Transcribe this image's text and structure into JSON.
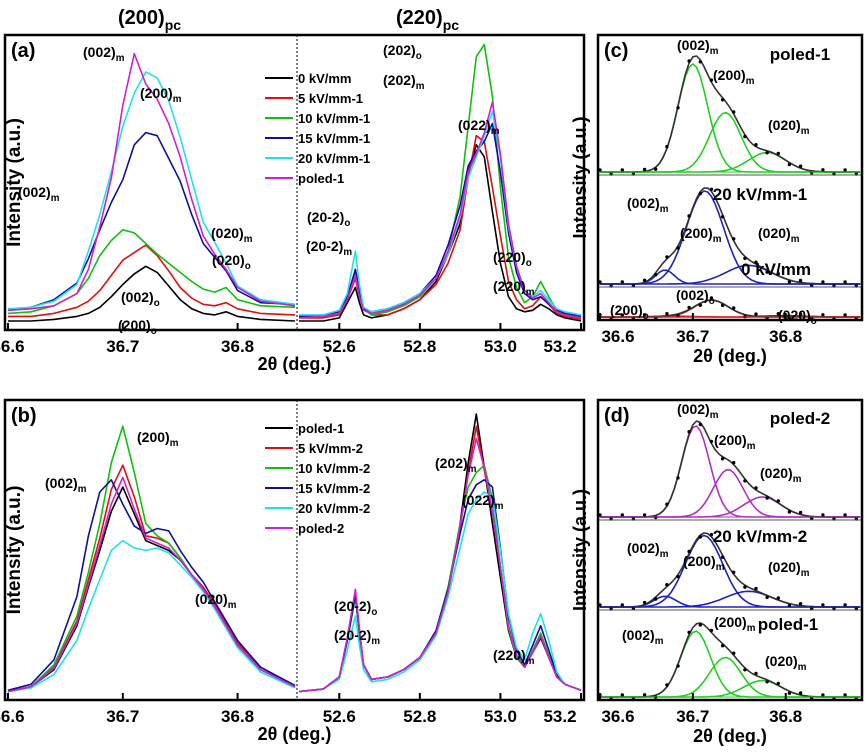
{
  "chart_data": [
    {
      "type": "line",
      "panel": "(a)",
      "column_titles": [
        "(200)",
        "(220)"
      ],
      "column_subscript": "pc",
      "ylabel": "Intensity (a.u.)",
      "xlabel": "2θ (deg.)",
      "left_xlim": [
        36.6,
        36.85
      ],
      "right_xlim": [
        52.5,
        53.2
      ],
      "left_ticks": [
        "36.6",
        "36.7",
        "36.8"
      ],
      "right_ticks": [
        "52.6",
        "52.8",
        "53.0",
        "53.2"
      ],
      "legend": [
        "0 kV/mm",
        "5 kV/mm-1",
        "10 kV/mm-1",
        "15 kV/mm-1",
        "20 kV/mm-1",
        "poled-1"
      ],
      "colors": [
        "#000000",
        "#e01010",
        "#10c010",
        "#10109a",
        "#20e0f0",
        "#d020d0"
      ],
      "left_x": [
        36.6,
        36.62,
        36.64,
        36.66,
        36.67,
        36.68,
        36.69,
        36.7,
        36.71,
        36.72,
        36.73,
        36.74,
        36.75,
        36.76,
        36.77,
        36.78,
        36.79,
        36.8,
        36.82,
        36.85
      ],
      "left_series": [
        {
          "name": "0 kV/mm",
          "values": [
            2,
            2,
            3,
            5,
            7,
            11,
            18,
            26,
            33,
            38,
            34,
            25,
            16,
            10,
            7,
            6,
            8,
            5,
            3,
            2
          ]
        },
        {
          "name": "5 kV/mm-1",
          "values": [
            5,
            5,
            7,
            11,
            15,
            22,
            32,
            42,
            47,
            52,
            45,
            35,
            24,
            17,
            13,
            12,
            14,
            10,
            7,
            6
          ]
        },
        {
          "name": "10 kV/mm-1",
          "values": [
            7,
            8,
            12,
            20,
            30,
            45,
            55,
            62,
            60,
            53,
            46,
            40,
            34,
            28,
            23,
            21,
            24,
            16,
            12,
            11
          ]
        },
        {
          "name": "15 kV/mm-1",
          "values": [
            9,
            11,
            16,
            27,
            43,
            62,
            80,
            95,
            118,
            126,
            124,
            109,
            94,
            72,
            53,
            44,
            35,
            22,
            14,
            13
          ]
        },
        {
          "name": "20 kV/mm-1",
          "values": [
            10,
            11,
            15,
            26,
            48,
            72,
            100,
            130,
            152,
            166,
            162,
            147,
            123,
            95,
            67,
            54,
            40,
            25,
            16,
            13
          ]
        },
        {
          "name": "poled-1",
          "values": [
            9,
            10,
            12,
            20,
            36,
            64,
            96,
            144,
            178,
            158,
            148,
            132,
            110,
            82,
            58,
            46,
            36,
            24,
            15,
            12
          ]
        }
      ],
      "right_x": [
        52.5,
        52.56,
        52.6,
        52.62,
        52.64,
        52.65,
        52.66,
        52.68,
        52.72,
        52.76,
        52.8,
        52.84,
        52.87,
        52.9,
        52.92,
        52.94,
        52.96,
        52.98,
        53.0,
        53.02,
        53.04,
        53.06,
        53.08,
        53.1,
        53.12,
        53.14,
        53.16,
        53.2
      ],
      "right_series": [
        {
          "name": "0 kV/mm",
          "values": [
            2,
            2,
            4,
            14,
            24,
            14,
            6,
            4,
            6,
            10,
            16,
            28,
            46,
            66,
            100,
            118,
            110,
            74,
            40,
            18,
            10,
            8,
            9,
            13,
            10,
            6,
            4,
            2
          ]
        },
        {
          "name": "5 kV/mm-1",
          "values": [
            4,
            4,
            6,
            16,
            30,
            18,
            10,
            6,
            6,
            10,
            16,
            26,
            40,
            62,
            96,
            124,
            120,
            90,
            58,
            28,
            16,
            10,
            12,
            18,
            13,
            7,
            5,
            3
          ]
        },
        {
          "name": "10 kV/mm-1",
          "values": [
            5,
            5,
            7,
            18,
            34,
            20,
            10,
            6,
            8,
            12,
            18,
            30,
            48,
            84,
            130,
            176,
            184,
            150,
            90,
            44,
            24,
            14,
            18,
            28,
            18,
            9,
            6,
            4
          ]
        },
        {
          "name": "15 kV/mm-1",
          "values": [
            5,
            6,
            8,
            18,
            36,
            22,
            10,
            8,
            10,
            14,
            20,
            32,
            52,
            78,
            104,
            114,
            120,
            132,
            100,
            60,
            34,
            20,
            16,
            18,
            13,
            9,
            7,
            5
          ]
        },
        {
          "name": "20 kV/mm-1",
          "values": [
            6,
            6,
            9,
            20,
            48,
            26,
            11,
            8,
            10,
            14,
            20,
            30,
            46,
            70,
            96,
            110,
            124,
            140,
            110,
            64,
            38,
            22,
            18,
            22,
            16,
            10,
            8,
            6
          ]
        },
        {
          "name": "poled-1",
          "values": [
            4,
            5,
            7,
            16,
            32,
            18,
            9,
            7,
            9,
            13,
            19,
            30,
            48,
            72,
            100,
            112,
            126,
            146,
            112,
            66,
            38,
            22,
            17,
            20,
            14,
            8,
            6,
            4
          ]
        }
      ],
      "annotations": [
        "(002)",
        "(200)",
        "(002)",
        "(020)",
        "(020)",
        "(002)",
        "(200)",
        "(202)",
        "(202)",
        "(022)",
        "(20-2)",
        "(20-2)",
        "(220)",
        "(220)"
      ],
      "annotation_subscripts": [
        "m",
        "m",
        "m",
        "m",
        "o",
        "o",
        "o",
        "o",
        "m",
        "m",
        "o",
        "m",
        "o",
        "m"
      ]
    },
    {
      "type": "line",
      "panel": "(b)",
      "ylabel": "Intensity (a.u.)",
      "xlabel": "2θ (deg.)",
      "left_xlim": [
        36.6,
        36.85
      ],
      "right_xlim": [
        52.5,
        53.2
      ],
      "left_ticks": [
        "36.6",
        "36.7",
        "36.8"
      ],
      "right_ticks": [
        "52.6",
        "52.8",
        "53.0",
        "53.2"
      ],
      "legend": [
        "poled-1",
        "5 kV/mm-2",
        "10 kV/mm-2",
        "15 kV/mm-2",
        "20 kV/mm-2",
        "poled-2"
      ],
      "colors": [
        "#000000",
        "#e01010",
        "#10c010",
        "#10109a",
        "#20e0f0",
        "#d020d0"
      ],
      "left_x": [
        36.6,
        36.62,
        36.64,
        36.66,
        36.67,
        36.68,
        36.69,
        36.7,
        36.71,
        36.72,
        36.73,
        36.74,
        36.75,
        36.76,
        36.77,
        36.78,
        36.79,
        36.8,
        36.82,
        36.85
      ],
      "left_series": [
        {
          "name": "poled-1",
          "values": [
            2,
            6,
            20,
            56,
            88,
            118,
            150,
            170,
            148,
            126,
            122,
            118,
            110,
            98,
            86,
            72,
            56,
            40,
            20,
            6
          ]
        },
        {
          "name": "5 kV/mm-2",
          "values": [
            2,
            6,
            22,
            60,
            94,
            128,
            168,
            188,
            162,
            130,
            128,
            124,
            112,
            98,
            88,
            74,
            58,
            42,
            22,
            6
          ]
        },
        {
          "name": "10 kV/mm-2",
          "values": [
            2,
            6,
            24,
            64,
            100,
            140,
            190,
            220,
            182,
            140,
            130,
            124,
            112,
            98,
            86,
            72,
            56,
            40,
            20,
            6
          ]
        },
        {
          "name": "15 kV/mm-2",
          "values": [
            3,
            8,
            28,
            80,
            130,
            166,
            176,
            156,
            138,
            132,
            136,
            134,
            118,
            104,
            92,
            76,
            60,
            44,
            22,
            7
          ]
        },
        {
          "name": "20 kV/mm-2",
          "values": [
            2,
            5,
            16,
            44,
            70,
            94,
            118,
            126,
            120,
            118,
            120,
            116,
            106,
            96,
            84,
            70,
            54,
            38,
            18,
            5
          ]
        },
        {
          "name": "poled-2",
          "values": [
            2,
            6,
            21,
            58,
            90,
            122,
            156,
            178,
            152,
            128,
            124,
            120,
            110,
            98,
            86,
            72,
            56,
            40,
            20,
            6
          ]
        }
      ],
      "right_x": [
        52.5,
        52.56,
        52.6,
        52.62,
        52.64,
        52.65,
        52.66,
        52.68,
        52.72,
        52.76,
        52.8,
        52.84,
        52.87,
        52.9,
        52.92,
        52.94,
        52.96,
        52.98,
        53.0,
        53.02,
        53.04,
        53.06,
        53.08,
        53.1,
        53.12,
        53.14,
        53.16,
        53.2
      ],
      "right_series": [
        {
          "name": "poled-1",
          "values": [
            2,
            4,
            14,
            44,
            80,
            50,
            24,
            12,
            14,
            20,
            30,
            50,
            84,
            140,
            190,
            230,
            186,
            140,
            96,
            52,
            30,
            22,
            34,
            46,
            30,
            14,
            8,
            3
          ]
        },
        {
          "name": "5 kV/mm-2",
          "values": [
            2,
            4,
            14,
            46,
            84,
            52,
            24,
            12,
            14,
            20,
            30,
            50,
            84,
            136,
            182,
            220,
            184,
            150,
            104,
            56,
            32,
            22,
            34,
            48,
            30,
            14,
            8,
            3
          ]
        },
        {
          "name": "10 kV/mm-2",
          "values": [
            2,
            4,
            14,
            44,
            80,
            50,
            24,
            12,
            14,
            20,
            30,
            52,
            88,
            140,
            170,
            182,
            188,
            160,
            104,
            54,
            30,
            22,
            36,
            50,
            32,
            14,
            8,
            3
          ]
        },
        {
          "name": "15 kV/mm-2",
          "values": [
            2,
            4,
            14,
            44,
            82,
            52,
            24,
            12,
            14,
            20,
            30,
            52,
            86,
            132,
            160,
            172,
            176,
            170,
            120,
            64,
            36,
            24,
            40,
            56,
            36,
            16,
            8,
            3
          ]
        },
        {
          "name": "20 kV/mm-2",
          "values": [
            2,
            4,
            12,
            36,
            64,
            40,
            20,
            10,
            12,
            18,
            28,
            48,
            80,
            120,
            148,
            160,
            166,
            162,
            118,
            66,
            38,
            28,
            50,
            66,
            44,
            18,
            8,
            3
          ]
        },
        {
          "name": "poled-2",
          "values": [
            2,
            4,
            14,
            46,
            86,
            54,
            24,
            12,
            14,
            20,
            30,
            50,
            84,
            138,
            180,
            210,
            186,
            150,
            104,
            56,
            32,
            22,
            34,
            48,
            30,
            14,
            8,
            3
          ]
        }
      ],
      "annotations": [
        "(002)",
        "(200)",
        "(020)",
        "(202)",
        "(022)",
        "(20-2)",
        "(20-2)",
        "(220)"
      ],
      "annotation_subscripts": [
        "m",
        "m",
        "m",
        "m",
        "m",
        "o",
        "m",
        "m"
      ]
    },
    {
      "type": "line",
      "panel": "(c)",
      "ylabel": "Intensity (a.u.)",
      "xlabel": "2θ (deg.)",
      "xlim": [
        36.6,
        36.88
      ],
      "ticks": [
        "36.6",
        "36.7",
        "36.8"
      ],
      "subpanels": [
        {
          "label": "poled-1",
          "fit_color": "#20d020",
          "peaks": [
            {
              "name": "(002)",
              "sub": "m",
              "center": 36.7,
              "height": 1.0,
              "width": 0.016
            },
            {
              "name": "(200)",
              "sub": "m",
              "center": 36.735,
              "height": 0.55,
              "width": 0.017
            },
            {
              "name": "(020)",
              "sub": "m",
              "center": 36.78,
              "height": 0.18,
              "width": 0.02
            }
          ]
        },
        {
          "label": "20 kV/mm-1",
          "fit_color": "#2020c0",
          "peaks": [
            {
              "name": "(002)",
              "sub": "m",
              "center": 36.67,
              "height": 0.15,
              "width": 0.01
            },
            {
              "name": "(200)",
              "sub": "m",
              "center": 36.713,
              "height": 1.0,
              "width": 0.02
            },
            {
              "name": "(020)",
              "sub": "m",
              "center": 36.76,
              "height": 0.2,
              "width": 0.025
            }
          ]
        },
        {
          "label": "0 kV/mm",
          "fit_color": "#e02020",
          "peaks": [
            {
              "name": "(200)",
              "sub": "o",
              "center": 36.68,
              "height": 0.05,
              "width": 0.02
            },
            {
              "name": "(002)",
              "sub": "o",
              "center": 36.72,
              "height": 1.0,
              "width": 0.018
            },
            {
              "name": "(020)",
              "sub": "o",
              "center": 36.8,
              "height": 0.08,
              "width": 0.02
            }
          ]
        }
      ]
    },
    {
      "type": "line",
      "panel": "(d)",
      "ylabel": "Intensity (a.u.)",
      "xlabel": "2θ (deg.)",
      "xlim": [
        36.6,
        36.88
      ],
      "ticks": [
        "36.6",
        "36.7",
        "36.8"
      ],
      "subpanels": [
        {
          "label": "poled-2",
          "fit_color": "#b030c0",
          "peaks": [
            {
              "name": "(002)",
              "sub": "m",
              "center": 36.703,
              "height": 1.0,
              "width": 0.015
            },
            {
              "name": "(200)",
              "sub": "m",
              "center": 36.738,
              "height": 0.52,
              "width": 0.016
            },
            {
              "name": "(020)",
              "sub": "m",
              "center": 36.775,
              "height": 0.22,
              "width": 0.02
            }
          ]
        },
        {
          "label": "20 kV/mm-2",
          "fit_color": "#2020c0",
          "peaks": [
            {
              "name": "(002)",
              "sub": "m",
              "center": 36.67,
              "height": 0.15,
              "width": 0.012
            },
            {
              "name": "(200)",
              "sub": "m",
              "center": 36.712,
              "height": 1.0,
              "width": 0.02
            },
            {
              "name": "(020)",
              "sub": "m",
              "center": 36.76,
              "height": 0.22,
              "width": 0.025
            }
          ]
        },
        {
          "label": "poled-1",
          "fit_color": "#20d020",
          "peaks": [
            {
              "name": "(002)",
              "sub": "m",
              "center": 36.703,
              "height": 1.0,
              "width": 0.016
            },
            {
              "name": "(200)",
              "sub": "m",
              "center": 36.735,
              "height": 0.6,
              "width": 0.017
            },
            {
              "name": "(020)",
              "sub": "m",
              "center": 36.775,
              "height": 0.25,
              "width": 0.02
            }
          ]
        }
      ]
    }
  ]
}
